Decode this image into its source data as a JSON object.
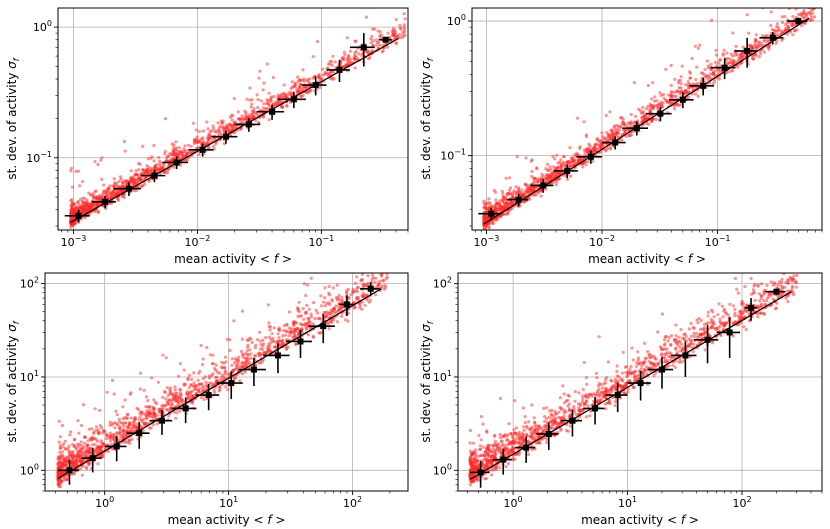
{
  "chart_data": [
    {
      "type": "scatter",
      "xscale": "log",
      "yscale": "log",
      "xlim": [
        0.00075,
        0.5
      ],
      "ylim": [
        0.028,
        1.4
      ],
      "xlabel": "mean activity ",
      "xlabel_math": "< f >",
      "ylabel": "st. dev. of activity ",
      "ylabel_math": "σ",
      "ylabel_sub": "f",
      "xticks": [
        {
          "v": 0.001,
          "base": "10",
          "exp": "−3"
        },
        {
          "v": 0.01,
          "base": "10",
          "exp": "−2"
        },
        {
          "v": 0.1,
          "base": "10",
          "exp": "−1"
        }
      ],
      "yticks": [
        {
          "v": 0.1,
          "base": "10",
          "exp": "−1"
        },
        {
          "v": 1,
          "base": "10",
          "exp": "0"
        }
      ],
      "grid": true,
      "scatter_color": "#ff2a2a",
      "fit_line": {
        "x": [
          0.00095,
          0.42
        ],
        "y": [
          0.032,
          0.82
        ]
      },
      "binned_means": [
        {
          "x": 0.0011,
          "y": 0.036,
          "xerr": 0.00025,
          "yerr": 0.004
        },
        {
          "x": 0.0018,
          "y": 0.046,
          "xerr": 0.0004,
          "yerr": 0.005
        },
        {
          "x": 0.0028,
          "y": 0.058,
          "xerr": 0.0007,
          "yerr": 0.007
        },
        {
          "x": 0.0045,
          "y": 0.073,
          "xerr": 0.001,
          "yerr": 0.008
        },
        {
          "x": 0.0068,
          "y": 0.092,
          "xerr": 0.0016,
          "yerr": 0.01
        },
        {
          "x": 0.011,
          "y": 0.115,
          "xerr": 0.0025,
          "yerr": 0.013
        },
        {
          "x": 0.017,
          "y": 0.145,
          "xerr": 0.004,
          "yerr": 0.017
        },
        {
          "x": 0.026,
          "y": 0.18,
          "xerr": 0.006,
          "yerr": 0.022
        },
        {
          "x": 0.04,
          "y": 0.225,
          "xerr": 0.01,
          "yerr": 0.03
        },
        {
          "x": 0.06,
          "y": 0.28,
          "xerr": 0.015,
          "yerr": 0.04
        },
        {
          "x": 0.09,
          "y": 0.36,
          "xerr": 0.02,
          "yerr": 0.06
        },
        {
          "x": 0.14,
          "y": 0.47,
          "xerr": 0.03,
          "yerr": 0.09
        },
        {
          "x": 0.22,
          "y": 0.7,
          "xerr": 0.05,
          "yerr": 0.2
        },
        {
          "x": 0.33,
          "y": 0.8,
          "xerr": 0.04,
          "yerr": 0.03
        }
      ]
    },
    {
      "type": "scatter",
      "xscale": "log",
      "yscale": "log",
      "xlim": [
        0.00075,
        0.8
      ],
      "ylim": [
        0.028,
        1.25
      ],
      "xlabel": "mean activity ",
      "xlabel_math": "< f >",
      "ylabel": "st. dev. of activity ",
      "ylabel_math": "σ",
      "ylabel_sub": "f",
      "xticks": [
        {
          "v": 0.001,
          "base": "10",
          "exp": "−3"
        },
        {
          "v": 0.01,
          "base": "10",
          "exp": "−2"
        },
        {
          "v": 0.1,
          "base": "10",
          "exp": "−1"
        }
      ],
      "yticks": [
        {
          "v": 0.1,
          "base": "10",
          "exp": "−1"
        },
        {
          "v": 1,
          "base": "10",
          "exp": "0"
        }
      ],
      "grid": true,
      "scatter_color": "#ff2a2a",
      "fit_line": {
        "x": [
          0.00095,
          0.62
        ],
        "y": [
          0.031,
          1.05
        ]
      },
      "binned_means": [
        {
          "x": 0.0011,
          "y": 0.037,
          "xerr": 0.00025,
          "yerr": 0.004
        },
        {
          "x": 0.0019,
          "y": 0.047,
          "xerr": 0.0004,
          "yerr": 0.005
        },
        {
          "x": 0.0031,
          "y": 0.06,
          "xerr": 0.0007,
          "yerr": 0.007
        },
        {
          "x": 0.005,
          "y": 0.077,
          "xerr": 0.0012,
          "yerr": 0.009
        },
        {
          "x": 0.008,
          "y": 0.098,
          "xerr": 0.002,
          "yerr": 0.011
        },
        {
          "x": 0.013,
          "y": 0.125,
          "xerr": 0.003,
          "yerr": 0.014
        },
        {
          "x": 0.02,
          "y": 0.16,
          "xerr": 0.005,
          "yerr": 0.019
        },
        {
          "x": 0.032,
          "y": 0.205,
          "xerr": 0.008,
          "yerr": 0.025
        },
        {
          "x": 0.05,
          "y": 0.26,
          "xerr": 0.012,
          "yerr": 0.035
        },
        {
          "x": 0.075,
          "y": 0.33,
          "xerr": 0.018,
          "yerr": 0.05
        },
        {
          "x": 0.115,
          "y": 0.45,
          "xerr": 0.028,
          "yerr": 0.08
        },
        {
          "x": 0.18,
          "y": 0.6,
          "xerr": 0.04,
          "yerr": 0.15
        },
        {
          "x": 0.3,
          "y": 0.75,
          "xerr": 0.07,
          "yerr": 0.08
        },
        {
          "x": 0.5,
          "y": 1.0,
          "xerr": 0.1,
          "yerr": 0.06
        }
      ]
    },
    {
      "type": "scatter",
      "xscale": "log",
      "yscale": "log",
      "xlim": [
        0.33,
        280
      ],
      "ylim": [
        0.6,
        130
      ],
      "xlabel": "mean activity ",
      "xlabel_math": "< f >",
      "ylabel": "st. dev. of activity ",
      "ylabel_math": "σ",
      "ylabel_sub": "f",
      "xticks": [
        {
          "v": 1,
          "base": "10",
          "exp": "0"
        },
        {
          "v": 10,
          "base": "10",
          "exp": "1"
        },
        {
          "v": 100,
          "base": "10",
          "exp": "2"
        }
      ],
      "yticks": [
        {
          "v": 1,
          "base": "10",
          "exp": "0"
        },
        {
          "v": 10,
          "base": "10",
          "exp": "1"
        },
        {
          "v": 100,
          "base": "10",
          "exp": "2"
        }
      ],
      "grid": true,
      "scatter_color": "#ff2a2a",
      "fit_line": {
        "x": [
          0.42,
          170
        ],
        "y": [
          0.82,
          88
        ]
      },
      "binned_means": [
        {
          "x": 0.52,
          "y": 1.0,
          "xerr": 0.1,
          "yerr": 0.3
        },
        {
          "x": 0.8,
          "y": 1.35,
          "xerr": 0.15,
          "yerr": 0.4
        },
        {
          "x": 1.25,
          "y": 1.8,
          "xerr": 0.25,
          "yerr": 0.55
        },
        {
          "x": 1.9,
          "y": 2.5,
          "xerr": 0.4,
          "yerr": 0.8
        },
        {
          "x": 2.9,
          "y": 3.4,
          "xerr": 0.6,
          "yerr": 1.0
        },
        {
          "x": 4.5,
          "y": 4.6,
          "xerr": 1.0,
          "yerr": 1.4
        },
        {
          "x": 6.9,
          "y": 6.4,
          "xerr": 1.5,
          "yerr": 2.0
        },
        {
          "x": 10.5,
          "y": 8.6,
          "xerr": 2.5,
          "yerr": 2.8
        },
        {
          "x": 16,
          "y": 12,
          "xerr": 4,
          "yerr": 4
        },
        {
          "x": 25,
          "y": 17,
          "xerr": 6,
          "yerr": 6
        },
        {
          "x": 38,
          "y": 24,
          "xerr": 9,
          "yerr": 8
        },
        {
          "x": 58,
          "y": 35,
          "xerr": 14,
          "yerr": 12
        },
        {
          "x": 90,
          "y": 60,
          "xerr": 12,
          "yerr": 15
        },
        {
          "x": 140,
          "y": 88,
          "xerr": 25,
          "yerr": 15
        }
      ]
    },
    {
      "type": "scatter",
      "xscale": "log",
      "yscale": "log",
      "xlim": [
        0.33,
        500
      ],
      "ylim": [
        0.6,
        130
      ],
      "xlabel": "mean activity ",
      "xlabel_math": "< f >",
      "ylabel": "st. dev. of activity ",
      "ylabel_math": "σ",
      "ylabel_sub": "f",
      "xticks": [
        {
          "v": 1,
          "base": "10",
          "exp": "0"
        },
        {
          "v": 10,
          "base": "10",
          "exp": "1"
        },
        {
          "v": 100,
          "base": "10",
          "exp": "2"
        }
      ],
      "yticks": [
        {
          "v": 1,
          "base": "10",
          "exp": "0"
        },
        {
          "v": 10,
          "base": "10",
          "exp": "1"
        },
        {
          "v": 100,
          "base": "10",
          "exp": "2"
        }
      ],
      "grid": true,
      "scatter_color": "#ff2a2a",
      "fit_line": {
        "x": [
          0.42,
          270
        ],
        "y": [
          0.8,
          82
        ]
      },
      "binned_means": [
        {
          "x": 0.52,
          "y": 0.95,
          "xerr": 0.1,
          "yerr": 0.3
        },
        {
          "x": 0.82,
          "y": 1.3,
          "xerr": 0.16,
          "yerr": 0.4
        },
        {
          "x": 1.3,
          "y": 1.75,
          "xerr": 0.26,
          "yerr": 0.55
        },
        {
          "x": 2.05,
          "y": 2.45,
          "xerr": 0.45,
          "yerr": 0.8
        },
        {
          "x": 3.3,
          "y": 3.4,
          "xerr": 0.7,
          "yerr": 1.1
        },
        {
          "x": 5.2,
          "y": 4.6,
          "xerr": 1.1,
          "yerr": 1.5
        },
        {
          "x": 8.2,
          "y": 6.4,
          "xerr": 1.8,
          "yerr": 2.2
        },
        {
          "x": 13,
          "y": 8.6,
          "xerr": 3,
          "yerr": 3
        },
        {
          "x": 20,
          "y": 12,
          "xerr": 5,
          "yerr": 4.5
        },
        {
          "x": 32,
          "y": 17,
          "xerr": 8,
          "yerr": 7
        },
        {
          "x": 50,
          "y": 25,
          "xerr": 12,
          "yerr": 11
        },
        {
          "x": 78,
          "y": 30,
          "xerr": 18,
          "yerr": 14
        },
        {
          "x": 120,
          "y": 55,
          "xerr": 15,
          "yerr": 15
        },
        {
          "x": 200,
          "y": 82,
          "xerr": 40,
          "yerr": 6
        }
      ]
    }
  ]
}
